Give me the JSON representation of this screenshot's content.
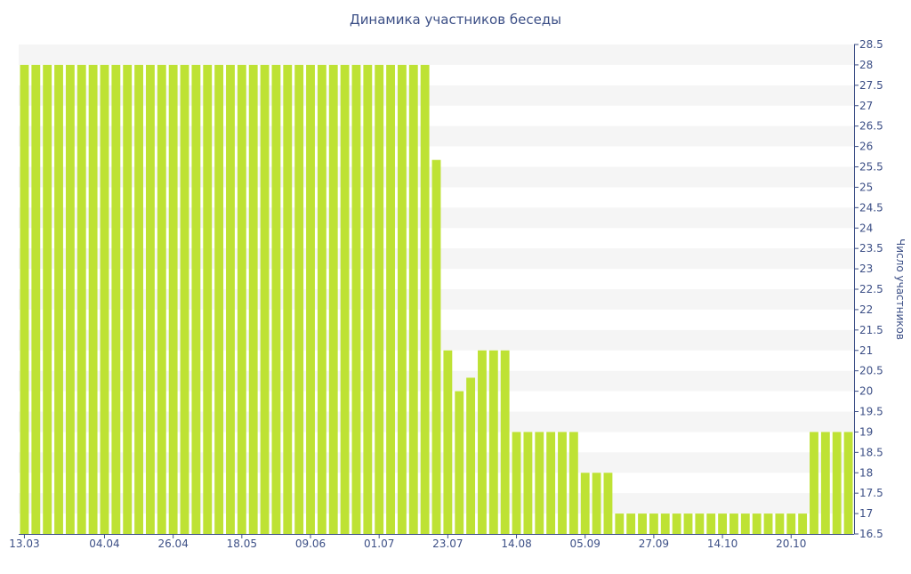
{
  "chart_data": {
    "type": "bar",
    "title": "Динамика участников беседы",
    "xlabel": "",
    "ylabel": "Число участников",
    "ylim": [
      16.5,
      28.5
    ],
    "y_ticks": [
      "16.5",
      "17",
      "17.5",
      "18",
      "18.5",
      "19",
      "19.5",
      "20",
      "20.5",
      "21",
      "21.5",
      "22",
      "22.5",
      "23",
      "23.5",
      "24",
      "24.5",
      "25",
      "25.5",
      "26",
      "26.5",
      "27",
      "27.5",
      "28",
      "28.5"
    ],
    "x_tick_labels": [
      {
        "index": 0,
        "label": "13.03"
      },
      {
        "index": 7,
        "label": "04.04"
      },
      {
        "index": 13,
        "label": "26.04"
      },
      {
        "index": 19,
        "label": "18.05"
      },
      {
        "index": 25,
        "label": "09.06"
      },
      {
        "index": 31,
        "label": "01.07"
      },
      {
        "index": 37,
        "label": "23.07"
      },
      {
        "index": 43,
        "label": "14.08"
      },
      {
        "index": 49,
        "label": "05.09"
      },
      {
        "index": 55,
        "label": "27.09"
      },
      {
        "index": 61,
        "label": "14.10"
      },
      {
        "index": 67,
        "label": "20.10"
      }
    ],
    "bar_color": "#bee234",
    "band_color": "#f5f5f5",
    "axis_color": "#3c4f86",
    "grid": true,
    "legend": "none",
    "values": [
      28,
      28,
      28,
      28,
      28,
      28,
      28,
      28,
      28,
      28,
      28,
      28,
      28,
      28,
      28,
      28,
      28,
      28,
      28,
      28,
      28,
      28,
      28,
      28,
      28,
      28,
      28,
      28,
      28,
      28,
      28,
      28,
      28,
      28,
      28,
      28,
      25.67,
      21,
      20,
      20.33,
      21,
      21,
      21,
      19,
      19,
      19,
      19,
      19,
      19,
      18,
      18,
      18,
      17,
      17,
      17,
      17,
      17,
      17,
      17,
      17,
      17,
      17,
      17,
      17,
      17,
      17,
      17,
      17,
      17,
      19,
      19,
      19,
      19
    ]
  }
}
